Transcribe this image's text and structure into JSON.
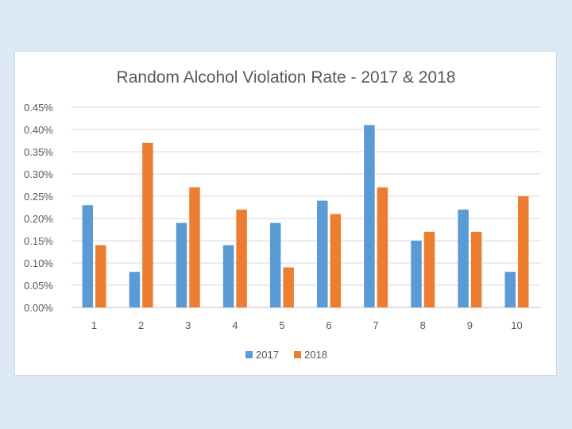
{
  "chart_data": {
    "type": "bar",
    "title": "Random Alcohol Violation Rate - 2017 & 2018",
    "xlabel": "",
    "ylabel": "",
    "categories": [
      "1",
      "2",
      "3",
      "4",
      "5",
      "6",
      "7",
      "8",
      "9",
      "10"
    ],
    "series": [
      {
        "name": "2017",
        "color": "#5b9bd5",
        "values": [
          0.23,
          0.08,
          0.19,
          0.14,
          0.19,
          0.24,
          0.41,
          0.15,
          0.22,
          0.08
        ]
      },
      {
        "name": "2018",
        "color": "#ed7d31",
        "values": [
          0.14,
          0.37,
          0.27,
          0.22,
          0.09,
          0.21,
          0.27,
          0.17,
          0.17,
          0.25
        ]
      }
    ],
    "ylim": [
      0,
      0.45
    ],
    "ytick_values": [
      0,
      0.05,
      0.1,
      0.15,
      0.2,
      0.25,
      0.3,
      0.35,
      0.4,
      0.45
    ],
    "yticks": [
      "0.00%",
      "0.05%",
      "0.10%",
      "0.15%",
      "0.20%",
      "0.25%",
      "0.30%",
      "0.35%",
      "0.40%",
      "0.45%"
    ],
    "grid": true,
    "legend_position": "bottom"
  }
}
